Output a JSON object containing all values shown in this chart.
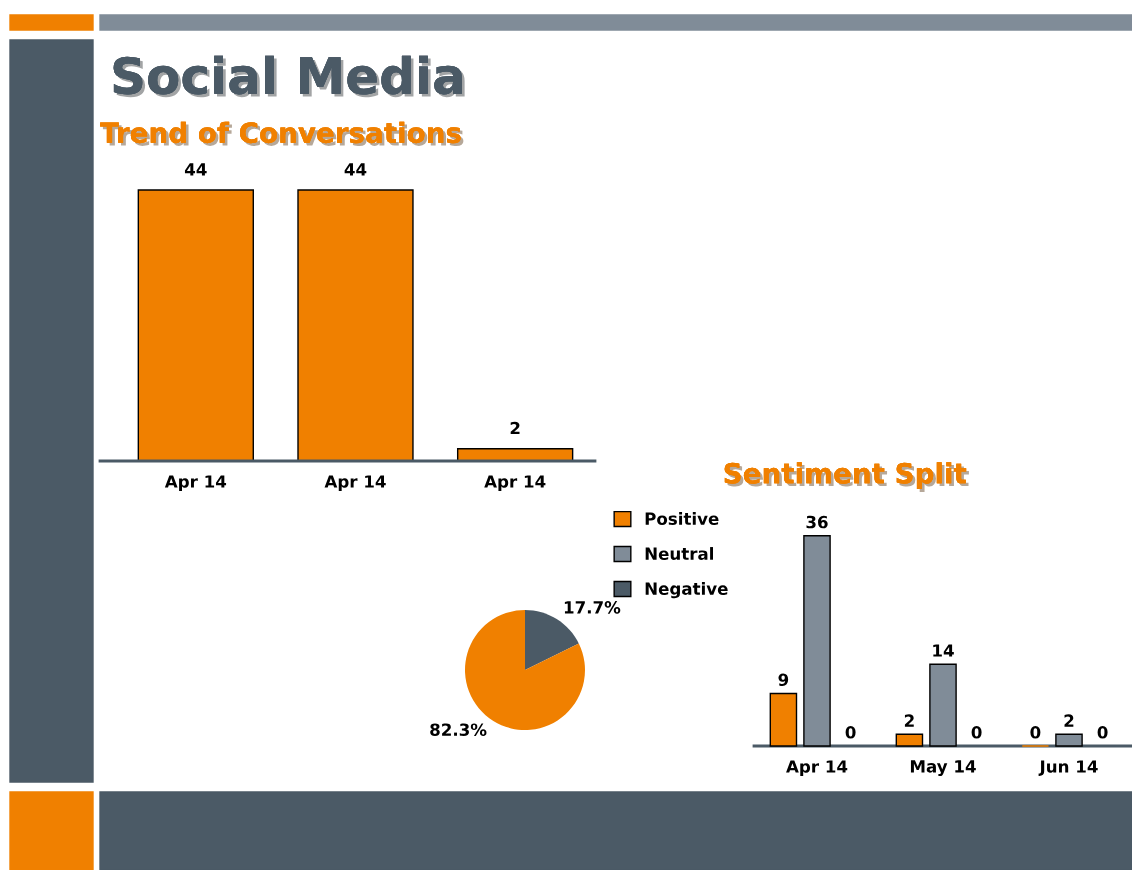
{
  "chart_data": [
    {
      "type": "other",
      "title": "Social Media"
    },
    {
      "type": "bar",
      "title": "Trend of Conversations",
      "categories": [
        "Apr 14",
        "Apr 14",
        "Apr 14"
      ],
      "values": [
        44,
        44,
        2
      ],
      "data_labels": true,
      "color": "#f08000"
    },
    {
      "type": "pie",
      "categories": [
        null,
        null
      ],
      "values": [
        17.7,
        82.3
      ],
      "colors": [
        "#4b5a66",
        "#f08000"
      ],
      "value_labels": [
        "17.7%",
        "82.3%"
      ]
    },
    {
      "type": "bar",
      "title": "Sentiment Split",
      "categories": [
        "Apr 14",
        "May 14",
        "Jun 14"
      ],
      "legend": "left",
      "data_labels": true,
      "series": [
        {
          "name": "Positive",
          "color": "#f08000",
          "values": [
            9,
            2,
            0
          ]
        },
        {
          "name": "Neutral",
          "color": "#808c98",
          "values": [
            36,
            14,
            2
          ]
        },
        {
          "name": "Negative",
          "color": "#4b5a66",
          "values": [
            0,
            0,
            0
          ]
        }
      ]
    }
  ]
}
